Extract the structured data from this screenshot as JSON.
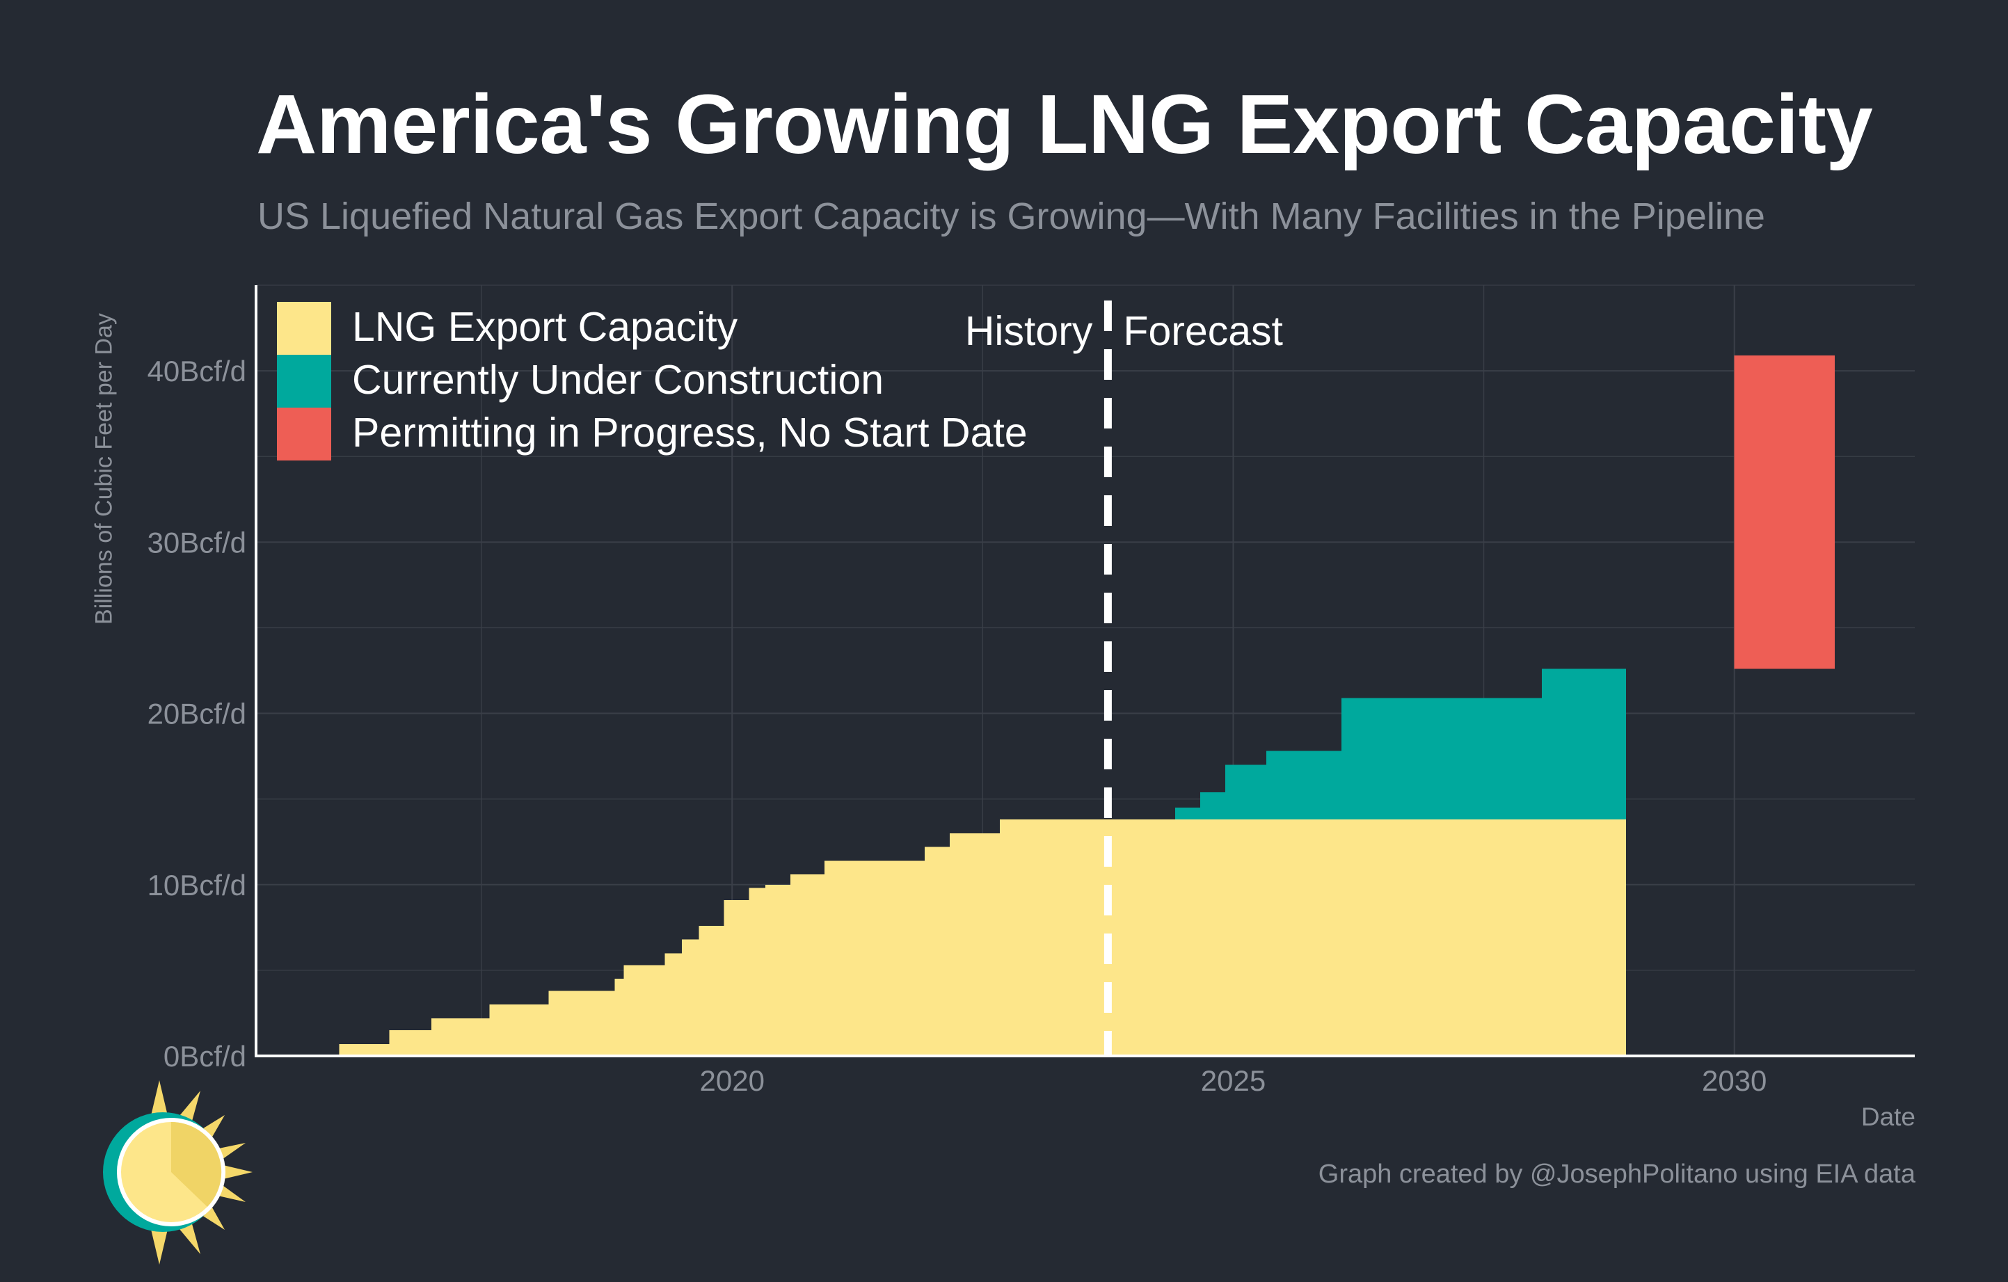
{
  "header": {
    "title": "America's Growing LNG Export Capacity",
    "subtitle": "US Liquefied Natural Gas Export Capacity is Growing—With Many Facilities in the Pipeline"
  },
  "footer": {
    "credit": "Graph created by @JosephPolitano using EIA data",
    "logo_icon": "sun-logo-icon"
  },
  "colors": {
    "background": "#252a33",
    "capacity": "#fde68a",
    "construction": "#00a99d",
    "permitting": "#ee5e55",
    "grid": "#3a3f48",
    "axis": "#ffffff",
    "muted_text": "#8c919a"
  },
  "chart_data": {
    "type": "area",
    "title": "America's Growing LNG Export Capacity",
    "subtitle": "US Liquefied Natural Gas Export Capacity is Growing—With Many Facilities in the Pipeline",
    "xlabel": "Date",
    "ylabel": "Billions of Cubic Feet per Day",
    "xlim": [
      2015.25,
      2031.8
    ],
    "ylim": [
      0,
      45
    ],
    "x_ticks": [
      2020,
      2025,
      2030
    ],
    "x_tick_labels": [
      "2020",
      "2025",
      "2030"
    ],
    "y_ticks": [
      0,
      10,
      20,
      30,
      40
    ],
    "y_tick_labels": [
      "0Bcf/d",
      "10Bcf/d",
      "20Bcf/d",
      "30Bcf/d",
      "40Bcf/d"
    ],
    "grid": true,
    "legend_position": "top-left",
    "legend": [
      "LNG Export Capacity",
      "Currently Under Construction",
      "Permitting in Progress, No Start Date"
    ],
    "annotations": {
      "divider_x": 2023.75,
      "history_label": "History",
      "forecast_label": "Forecast"
    },
    "series": [
      {
        "name": "LNG Export Capacity",
        "color": "#fde68a",
        "steps": [
          {
            "start": 2016.08,
            "end": 2016.58,
            "value": 0.7
          },
          {
            "start": 2016.58,
            "end": 2017.0,
            "value": 1.5
          },
          {
            "start": 2017.0,
            "end": 2017.58,
            "value": 2.2
          },
          {
            "start": 2017.58,
            "end": 2018.17,
            "value": 3.0
          },
          {
            "start": 2018.17,
            "end": 2018.83,
            "value": 3.8
          },
          {
            "start": 2018.83,
            "end": 2018.92,
            "value": 4.5
          },
          {
            "start": 2018.92,
            "end": 2019.33,
            "value": 5.3
          },
          {
            "start": 2019.33,
            "end": 2019.5,
            "value": 6.0
          },
          {
            "start": 2019.5,
            "end": 2019.67,
            "value": 6.8
          },
          {
            "start": 2019.67,
            "end": 2019.92,
            "value": 7.6
          },
          {
            "start": 2019.92,
            "end": 2020.17,
            "value": 9.1
          },
          {
            "start": 2020.17,
            "end": 2020.33,
            "value": 9.8
          },
          {
            "start": 2020.33,
            "end": 2020.58,
            "value": 10.0
          },
          {
            "start": 2020.58,
            "end": 2020.92,
            "value": 10.6
          },
          {
            "start": 2020.92,
            "end": 2021.92,
            "value": 11.4
          },
          {
            "start": 2021.92,
            "end": 2022.17,
            "value": 12.2
          },
          {
            "start": 2022.17,
            "end": 2022.67,
            "value": 13.0
          },
          {
            "start": 2022.67,
            "end": 2028.92,
            "value": 13.8
          }
        ]
      },
      {
        "name": "Currently Under Construction",
        "color": "#00a99d",
        "baseline": 13.8,
        "steps": [
          {
            "start": 2024.42,
            "end": 2024.67,
            "value": 14.5
          },
          {
            "start": 2024.67,
            "end": 2024.92,
            "value": 15.4
          },
          {
            "start": 2024.92,
            "end": 2025.33,
            "value": 17.0
          },
          {
            "start": 2025.33,
            "end": 2026.08,
            "value": 17.8
          },
          {
            "start": 2026.08,
            "end": 2028.08,
            "value": 20.9
          },
          {
            "start": 2028.08,
            "end": 2028.92,
            "value": 22.6
          }
        ]
      },
      {
        "name": "Permitting in Progress, No Start Date",
        "color": "#ee5e55",
        "steps": [
          {
            "start": 2030.0,
            "end": 2031.0,
            "low": 22.6,
            "value": 40.9
          }
        ]
      }
    ]
  }
}
